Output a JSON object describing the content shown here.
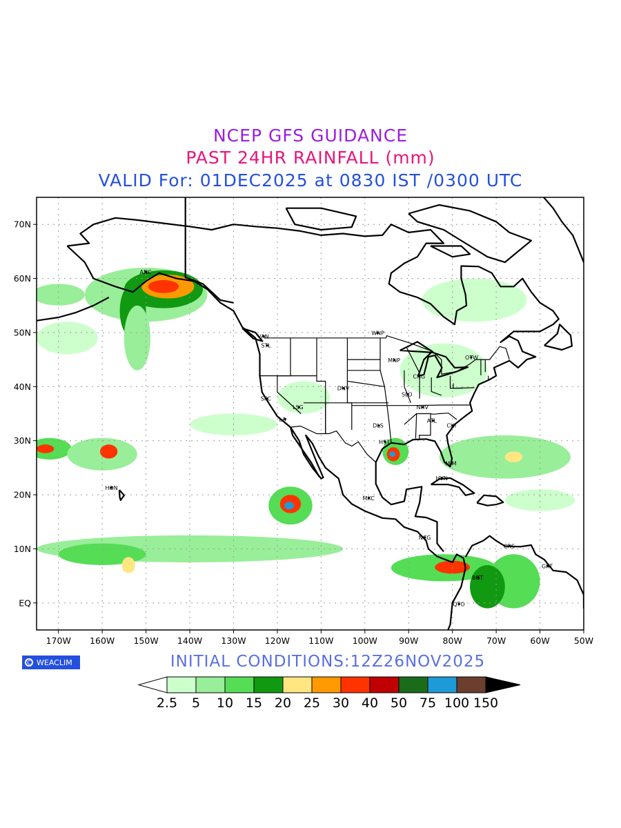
{
  "titles": {
    "line1": "NCEP GFS GUIDANCE",
    "line2": "PAST 24HR RAINFALL (mm)",
    "line3": "VALID For: 01DEC2025 at 0830 IST /0300 UTC",
    "initial_conditions": "INITIAL  CONDITIONS:12Z26NOV2025"
  },
  "colors": {
    "line1": "#9a1ee0",
    "line2": "#e8157c",
    "line3": "#2450e0",
    "initial_conditions": "#5870e0"
  },
  "badge": {
    "icon": "copyright-icon",
    "label": "WEACLIM"
  },
  "map": {
    "lon_range": [
      -175,
      -50
    ],
    "lat_range": [
      -5,
      75
    ],
    "lon_ticks": [
      {
        "lon": -170,
        "label": "170W"
      },
      {
        "lon": -160,
        "label": "160W"
      },
      {
        "lon": -150,
        "label": "150W"
      },
      {
        "lon": -140,
        "label": "140W"
      },
      {
        "lon": -130,
        "label": "130W"
      },
      {
        "lon": -120,
        "label": "120W"
      },
      {
        "lon": -110,
        "label": "110W"
      },
      {
        "lon": -100,
        "label": "100W"
      },
      {
        "lon": -90,
        "label": "90W"
      },
      {
        "lon": -80,
        "label": "80W"
      },
      {
        "lon": -70,
        "label": "70W"
      },
      {
        "lon": -60,
        "label": "60W"
      },
      {
        "lon": -50,
        "label": "50W"
      }
    ],
    "lat_ticks": [
      {
        "lat": 70,
        "label": "70N"
      },
      {
        "lat": 60,
        "label": "60N"
      },
      {
        "lat": 50,
        "label": "50N"
      },
      {
        "lat": 40,
        "label": "40N"
      },
      {
        "lat": 30,
        "label": "30N"
      },
      {
        "lat": 20,
        "label": "20N"
      },
      {
        "lat": 10,
        "label": "10N"
      },
      {
        "lat": 0,
        "label": "EQ"
      }
    ],
    "cities": [
      {
        "name": "ANC",
        "lon": -150,
        "lat": 61.2
      },
      {
        "name": "VAN",
        "lon": -123.1,
        "lat": 49.3
      },
      {
        "name": "STL",
        "lon": -122.3,
        "lat": 47.6
      },
      {
        "name": "WNP",
        "lon": -97.1,
        "lat": 49.9
      },
      {
        "name": "MNP",
        "lon": -93.3,
        "lat": 44.9
      },
      {
        "name": "OTW",
        "lon": -75.7,
        "lat": 45.4
      },
      {
        "name": "CHG",
        "lon": -87.6,
        "lat": 41.9
      },
      {
        "name": "DNV",
        "lon": -104.9,
        "lat": 39.7
      },
      {
        "name": "SFC",
        "lon": -122.4,
        "lat": 37.8
      },
      {
        "name": "LSG",
        "lon": -115.1,
        "lat": 36.2
      },
      {
        "name": "LA",
        "lon": -118.2,
        "lat": 34.0
      },
      {
        "name": "SLO",
        "lon": -90.2,
        "lat": 38.6
      },
      {
        "name": "NHV",
        "lon": -86.8,
        "lat": 36.2
      },
      {
        "name": "ATL",
        "lon": -84.4,
        "lat": 33.7
      },
      {
        "name": "DLS",
        "lon": -96.8,
        "lat": 32.8
      },
      {
        "name": "CHI",
        "lon": -79.9,
        "lat": 32.8
      },
      {
        "name": "HST",
        "lon": -95.4,
        "lat": 29.8
      },
      {
        "name": "MIM",
        "lon": -80.2,
        "lat": 25.8
      },
      {
        "name": "HVN",
        "lon": -82.4,
        "lat": 23.1
      },
      {
        "name": "HON",
        "lon": -157.9,
        "lat": 21.3
      },
      {
        "name": "MXC",
        "lon": -99.1,
        "lat": 19.4
      },
      {
        "name": "NCG",
        "lon": -86.3,
        "lat": 12.1
      },
      {
        "name": "CRS",
        "lon": -66.9,
        "lat": 10.5
      },
      {
        "name": "GRT",
        "lon": -58.2,
        "lat": 6.8
      },
      {
        "name": "BGT",
        "lon": -74.1,
        "lat": 4.7
      },
      {
        "name": "QTO",
        "lon": -78.5,
        "lat": -0.2
      }
    ]
  },
  "colorbar": {
    "labels": [
      "2.5",
      "5",
      "10",
      "15",
      "20",
      "25",
      "30",
      "40",
      "50",
      "75",
      "100",
      "150"
    ],
    "under_color": "#ffffff",
    "over_color": "#000000",
    "colors": [
      "#ccffcc",
      "#99ee99",
      "#55dd55",
      "#119911",
      "#ffe680",
      "#ff9900",
      "#ff3300",
      "#c00000",
      "#1a6b1a",
      "#1e9ad6",
      "#6b3e2e"
    ]
  },
  "rain": [
    {
      "lon": -150,
      "lat": 57,
      "rx": 14,
      "ry": 5,
      "level": 1
    },
    {
      "lon": -146,
      "lat": 58,
      "rx": 9,
      "ry": 3.5,
      "level": 3
    },
    {
      "lon": -145,
      "lat": 58.5,
      "rx": 6,
      "ry": 2.2,
      "level": 5
    },
    {
      "lon": -146,
      "lat": 58.5,
      "rx": 3.5,
      "ry": 1.2,
      "level": 6
    },
    {
      "lon": -153,
      "lat": 54,
      "rx": 3,
      "ry": 5,
      "level": 3
    },
    {
      "lon": -152,
      "lat": 49,
      "rx": 3,
      "ry": 6,
      "level": 1
    },
    {
      "lon": -170,
      "lat": 57,
      "rx": 6,
      "ry": 2,
      "level": 1
    },
    {
      "lon": -172,
      "lat": 28.5,
      "rx": 5,
      "ry": 2,
      "level": 2
    },
    {
      "lon": -173,
      "lat": 28.5,
      "rx": 2,
      "ry": 0.8,
      "level": 6
    },
    {
      "lon": -160,
      "lat": 27.5,
      "rx": 8,
      "ry": 3,
      "level": 1
    },
    {
      "lon": -158.5,
      "lat": 28,
      "rx": 2,
      "ry": 1.3,
      "level": 6
    },
    {
      "lon": -117,
      "lat": 18,
      "rx": 5,
      "ry": 3.5,
      "level": 2
    },
    {
      "lon": -117,
      "lat": 18.3,
      "rx": 2.4,
      "ry": 1.7,
      "level": 6
    },
    {
      "lon": -117.3,
      "lat": 18,
      "rx": 1.1,
      "ry": 0.7,
      "level": 9
    },
    {
      "lon": -140,
      "lat": 10,
      "rx": 35,
      "ry": 2.5,
      "level": 1
    },
    {
      "lon": -160,
      "lat": 9,
      "rx": 10,
      "ry": 2,
      "level": 2
    },
    {
      "lon": -154,
      "lat": 7,
      "rx": 1.5,
      "ry": 1.5,
      "level": 4
    },
    {
      "lon": -82,
      "lat": 6.5,
      "rx": 12,
      "ry": 2.5,
      "level": 2
    },
    {
      "lon": -80,
      "lat": 6.6,
      "rx": 4,
      "ry": 1.2,
      "level": 6
    },
    {
      "lon": -93,
      "lat": 28,
      "rx": 3,
      "ry": 2.5,
      "level": 2
    },
    {
      "lon": -93.5,
      "lat": 27.5,
      "rx": 1.5,
      "ry": 1.3,
      "level": 6
    },
    {
      "lon": -93.7,
      "lat": 27.5,
      "rx": 0.7,
      "ry": 0.5,
      "level": 9
    },
    {
      "lon": -82,
      "lat": 43,
      "rx": 10,
      "ry": 5,
      "level": 0
    },
    {
      "lon": -75,
      "lat": 56,
      "rx": 12,
      "ry": 4,
      "level": 0
    },
    {
      "lon": -68,
      "lat": 27,
      "rx": 15,
      "ry": 4,
      "level": 1
    },
    {
      "lon": -66,
      "lat": 27,
      "rx": 2,
      "ry": 1,
      "level": 4
    },
    {
      "lon": -66,
      "lat": 4,
      "rx": 6,
      "ry": 5,
      "level": 2
    },
    {
      "lon": -72,
      "lat": 3,
      "rx": 4,
      "ry": 4,
      "level": 3
    },
    {
      "lon": -168,
      "lat": 49,
      "rx": 7,
      "ry": 3,
      "level": 0
    },
    {
      "lon": -114,
      "lat": 38,
      "rx": 6,
      "ry": 3,
      "level": 0
    },
    {
      "lon": -60,
      "lat": 19,
      "rx": 8,
      "ry": 2,
      "level": 0
    },
    {
      "lon": -130,
      "lat": 33,
      "rx": 10,
      "ry": 2,
      "level": 0
    }
  ]
}
